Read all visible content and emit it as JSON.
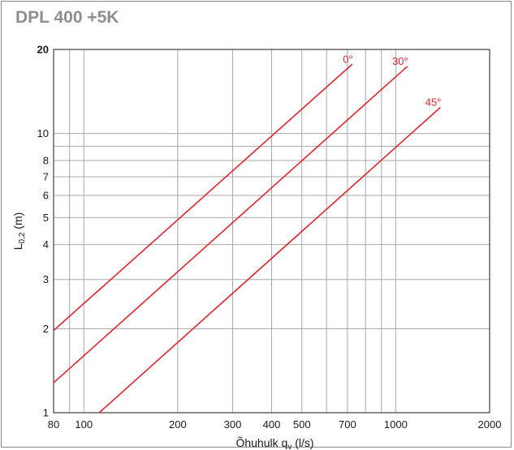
{
  "colors": {
    "series": "#e0242c",
    "grid": "#a9a9a9",
    "axis": "#1a1a1a",
    "title": "#8e8e8e"
  },
  "chart_data": {
    "type": "line",
    "title": "DPL 400 +5K",
    "xlabel": "Õhuhulk",
    "xlabel_symbol": "q",
    "xlabel_subscript": "v",
    "xlabel_unit": "(l/s)",
    "ylabel": "L",
    "ylabel_subscript": "0,2",
    "ylabel_unit": "(m)",
    "xscale": "log",
    "yscale": "log",
    "xlim": [
      80,
      2000
    ],
    "ylim": [
      1,
      20
    ],
    "grid": true,
    "x_ticks": [
      {
        "value": 80,
        "label": "80"
      },
      {
        "value": 100,
        "label": "100"
      },
      {
        "value": 200,
        "label": "200"
      },
      {
        "value": 300,
        "label": "300"
      },
      {
        "value": 400,
        "label": "400"
      },
      {
        "value": 500,
        "label": "500"
      },
      {
        "value": 700,
        "label": "700"
      },
      {
        "value": 1000,
        "label": "1000"
      },
      {
        "value": 2000,
        "label": "2000"
      }
    ],
    "x_grid": [
      90,
      100,
      200,
      300,
      400,
      500,
      600,
      700,
      800,
      900,
      1000
    ],
    "y_ticks": [
      {
        "value": 1,
        "label": "1"
      },
      {
        "value": 2,
        "label": "2"
      },
      {
        "value": 3,
        "label": "3"
      },
      {
        "value": 4,
        "label": "4"
      },
      {
        "value": 5,
        "label": "5"
      },
      {
        "value": 6,
        "label": "6"
      },
      {
        "value": 7,
        "label": "7"
      },
      {
        "value": 8,
        "label": "8"
      },
      {
        "value": 10,
        "label": "10"
      },
      {
        "value": 20,
        "label": "20"
      }
    ],
    "y_grid": [
      2,
      3,
      4,
      5,
      6,
      7,
      8,
      9,
      10
    ],
    "series": [
      {
        "name": "0°",
        "x": [
          80,
          725
        ],
        "y": [
          1.97,
          17.7
        ]
      },
      {
        "name": "30°",
        "x": [
          80,
          1090
        ],
        "y": [
          1.28,
          17.4
        ]
      },
      {
        "name": "45°",
        "x": [
          112,
          1390
        ],
        "y": [
          1.0,
          12.4
        ]
      }
    ]
  }
}
